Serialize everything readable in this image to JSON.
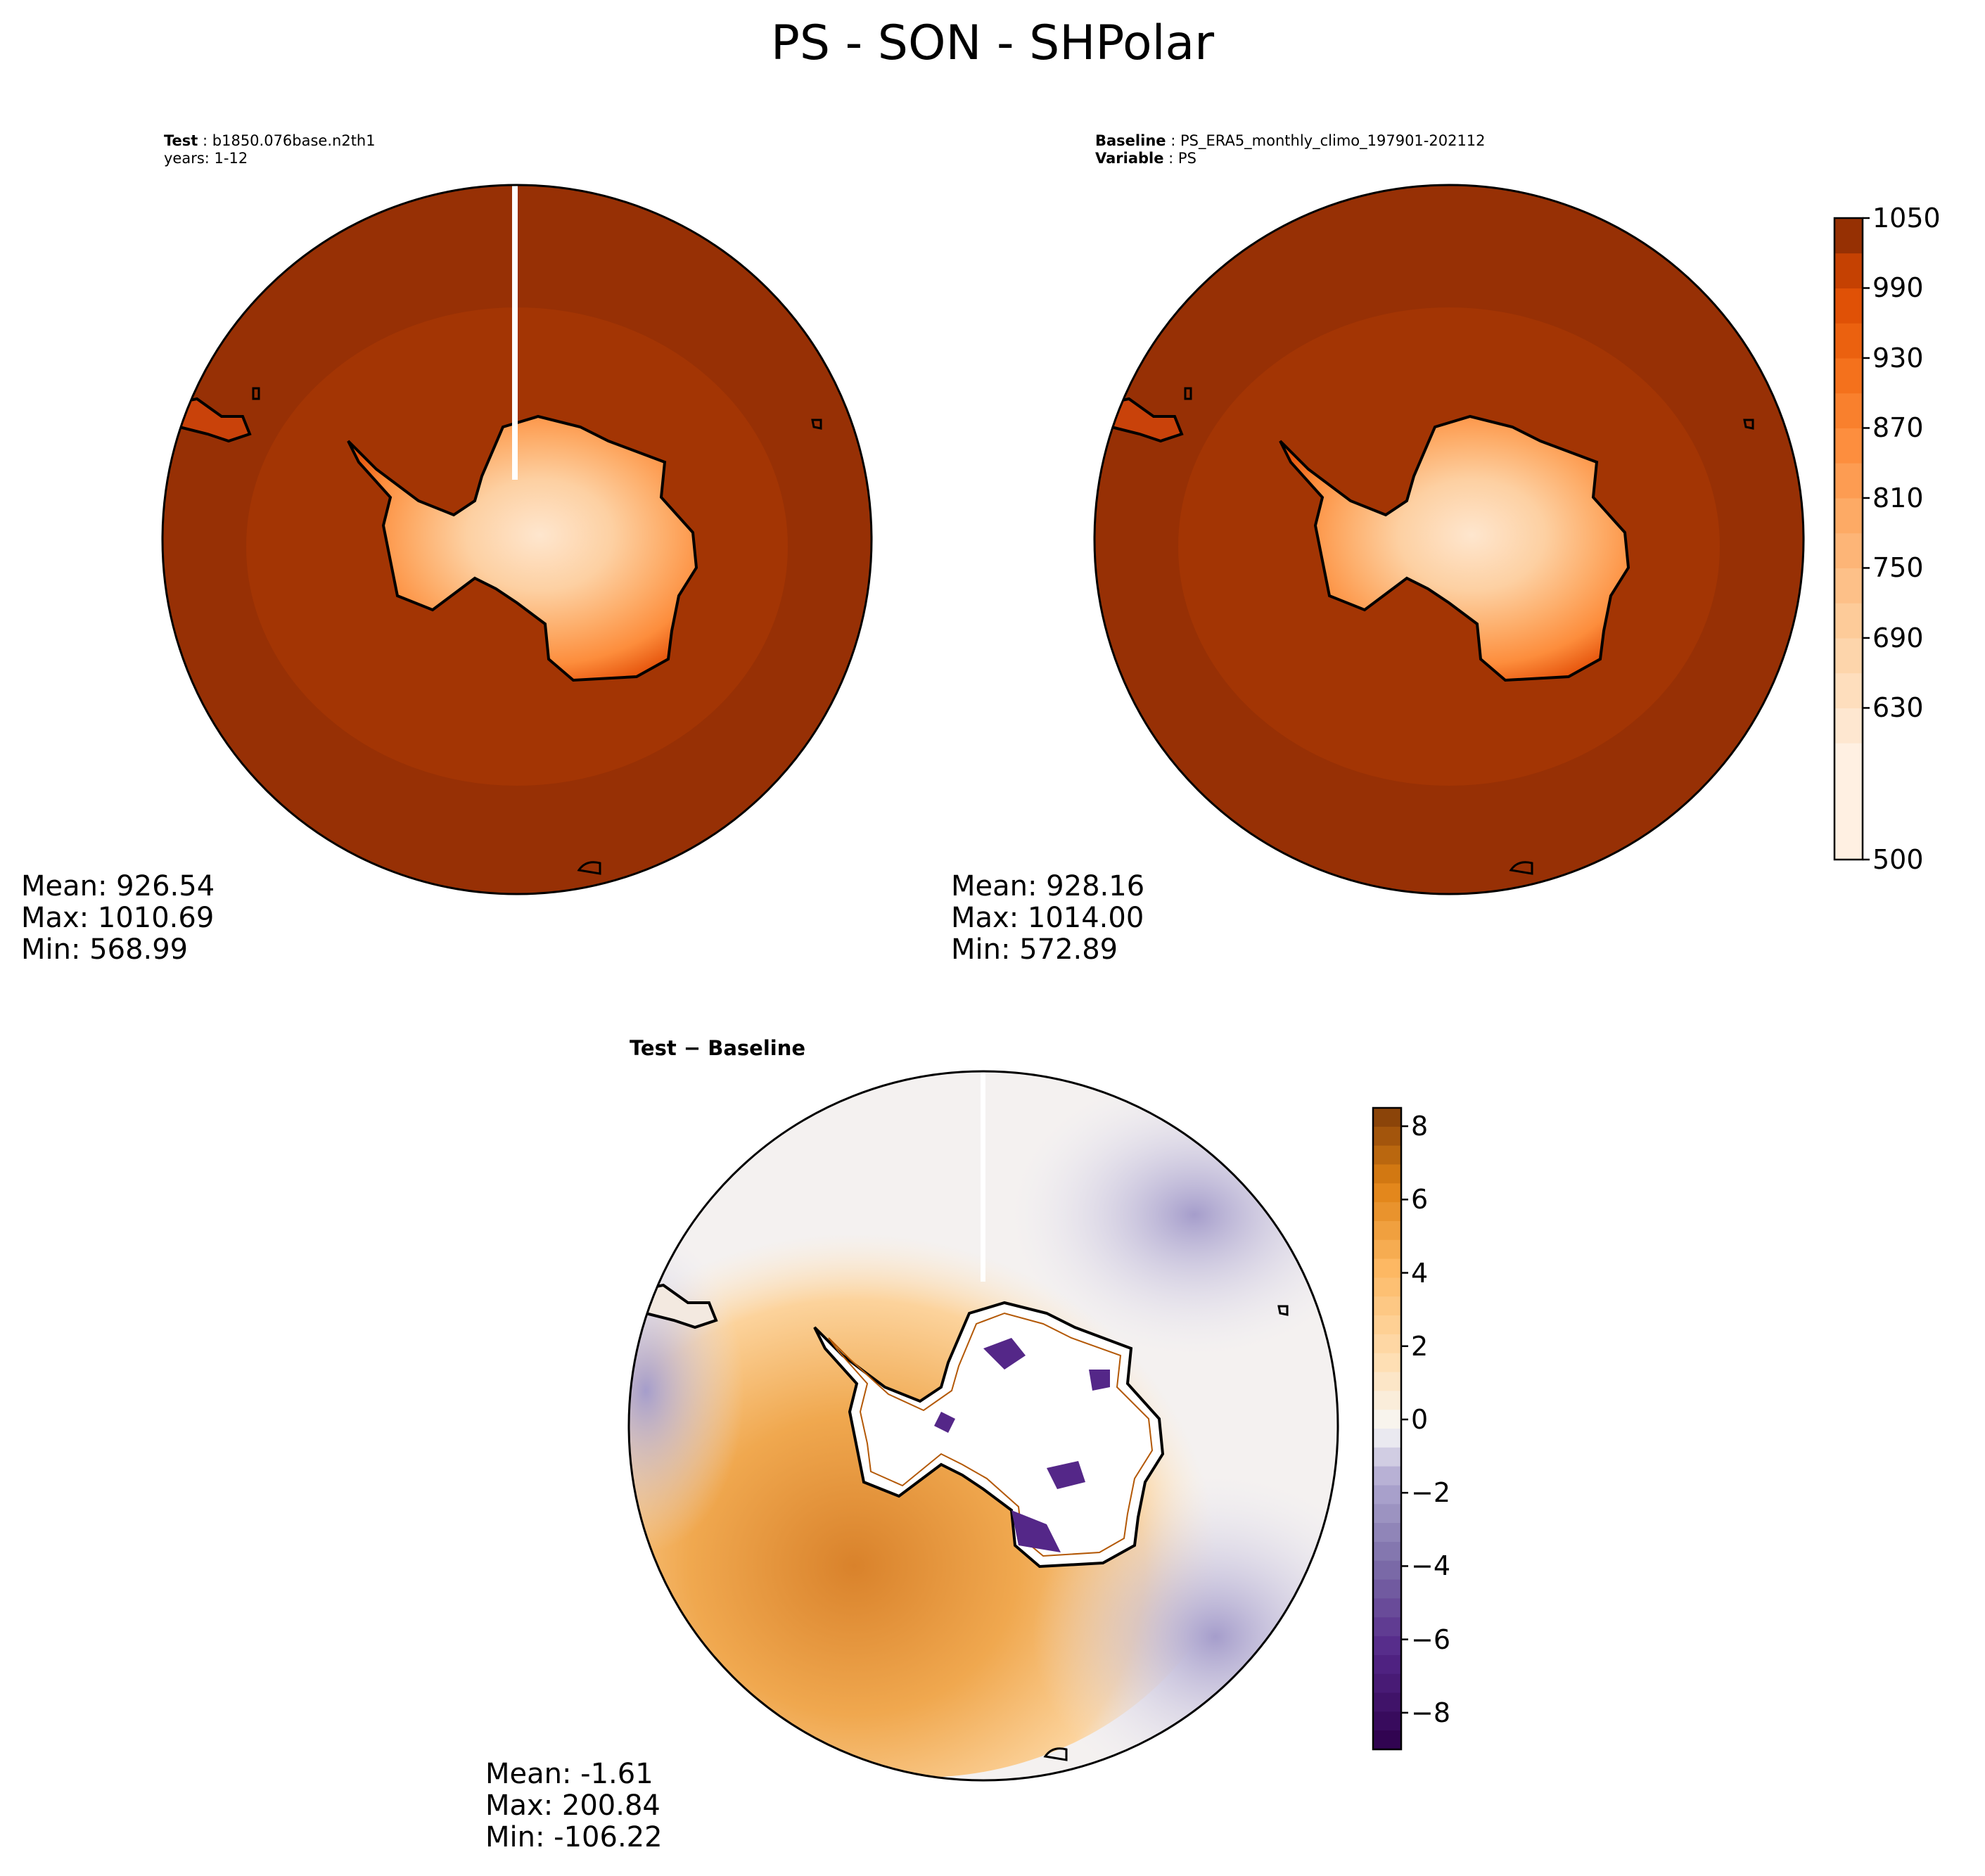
{
  "title": "PS - SON - SHPolar",
  "test_panel": {
    "label_key": "Test",
    "label_value": "b1850.076base.n2th1",
    "years_line": "years: 1-12",
    "stats": {
      "mean": "Mean: 926.54",
      "max": "Max: 1010.69",
      "min": "Min: 568.99"
    }
  },
  "baseline_panel": {
    "label_key": "Baseline",
    "label_value": "PS_ERA5_monthly_climo_197901-202112",
    "variable_key": "Variable",
    "variable_value": "PS",
    "stats": {
      "mean": "Mean: 928.16",
      "max": "Max: 1014.00",
      "min": "Min: 572.89"
    }
  },
  "diff_panel": {
    "title": "Test − Baseline",
    "stats": {
      "mean": "Mean: -1.61",
      "max": "Max: 200.84",
      "min": "Min: -106.22"
    }
  },
  "chart_data": [
    {
      "type": "heatmap",
      "name": "test",
      "projection": "south polar stereographic",
      "field": "PS",
      "colormap": "Oranges",
      "ocean_level": 990,
      "mid_ocean_ring_level": 975,
      "interior_min": 568.99,
      "mean": 926.54,
      "max": 1010.69,
      "min": 568.99
    },
    {
      "type": "heatmap",
      "name": "baseline",
      "projection": "south polar stereographic",
      "field": "PS",
      "colormap": "Oranges",
      "ocean_level": 990,
      "mid_ocean_ring_level": 975,
      "interior_min": 572.89,
      "mean": 928.16,
      "max": 1014.0,
      "min": 572.89
    },
    {
      "type": "heatmap",
      "name": "difference",
      "projection": "south polar stereographic",
      "colormap": "PuOr_r",
      "mean": -1.61,
      "max": 200.84,
      "min": -106.22
    }
  ],
  "colorbar_main": {
    "range": [
      500,
      1050
    ],
    "ticks": [
      "500",
      "630",
      "690",
      "750",
      "810",
      "870",
      "930",
      "990",
      "1050"
    ],
    "tick_values": [
      500,
      630,
      690,
      750,
      810,
      870,
      930,
      990,
      1050
    ],
    "levels": [
      500,
      600,
      630,
      660,
      690,
      720,
      750,
      780,
      810,
      840,
      870,
      900,
      930,
      960,
      990,
      1020,
      1050
    ]
  },
  "colorbar_diff": {
    "range": [
      -9,
      8.5
    ],
    "ticks": [
      "−8",
      "−6",
      "−4",
      "−2",
      "0",
      "2",
      "4",
      "6",
      "8"
    ],
    "tick_values": [
      -8,
      -6,
      -4,
      -2,
      0,
      2,
      4,
      6,
      8
    ]
  },
  "colors": {
    "ocean_main": "#973005",
    "ring_main": "#a33504",
    "land_low": "#fdd0a2",
    "diff_positive": "#e0912f",
    "diff_negative": "#b2abd2"
  }
}
